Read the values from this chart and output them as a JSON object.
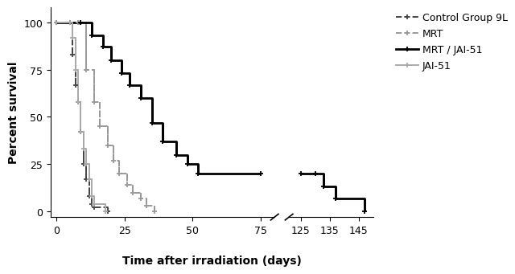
{
  "xlabel": "Time after irradiation (days)",
  "ylabel": "Percent survival",
  "ylim": [
    -3,
    108
  ],
  "yticks": [
    0,
    25,
    50,
    75,
    100
  ],
  "left_xlim": [
    -2,
    80
  ],
  "right_xlim": [
    121,
    150
  ],
  "left_xticks": [
    0,
    25,
    50,
    75
  ],
  "right_xticks": [
    125,
    135,
    145
  ],
  "control_x": [
    0,
    5,
    6,
    7,
    8,
    9,
    10,
    11,
    12,
    13,
    14,
    19
  ],
  "control_y": [
    100,
    100,
    83,
    67,
    58,
    42,
    25,
    17,
    8,
    4,
    2,
    0
  ],
  "jai51_x": [
    0,
    5,
    6,
    7,
    8,
    9,
    10,
    11,
    12,
    13,
    14,
    18
  ],
  "jai51_y": [
    100,
    100,
    92,
    75,
    58,
    42,
    33,
    25,
    17,
    8,
    4,
    0
  ],
  "mrt_x": [
    0,
    8,
    11,
    14,
    16,
    19,
    21,
    23,
    26,
    28,
    31,
    33,
    36
  ],
  "mrt_y": [
    100,
    100,
    75,
    58,
    45,
    35,
    27,
    20,
    14,
    10,
    7,
    3,
    0
  ],
  "mrtjai_x_left": [
    0,
    9,
    13,
    17,
    20,
    24,
    27,
    31,
    35,
    39,
    44,
    48,
    52,
    75
  ],
  "mrtjai_y_left": [
    100,
    100,
    93,
    87,
    80,
    73,
    67,
    60,
    47,
    37,
    30,
    25,
    20,
    20
  ],
  "mrtjai_x_right": [
    125,
    130,
    133,
    137,
    147
  ],
  "mrtjai_y_right": [
    20,
    20,
    13,
    7,
    0
  ],
  "color_control": "#444444",
  "color_mrt": "#999999",
  "color_mrtjai": "#000000",
  "color_jai51": "#aaaaaa",
  "legend_labels": [
    "Control Group 9L",
    "MRT",
    "MRT / JAI-51",
    "JAI-51"
  ],
  "lw_thin": 1.4,
  "lw_thick": 2.0,
  "marker_size": 5
}
